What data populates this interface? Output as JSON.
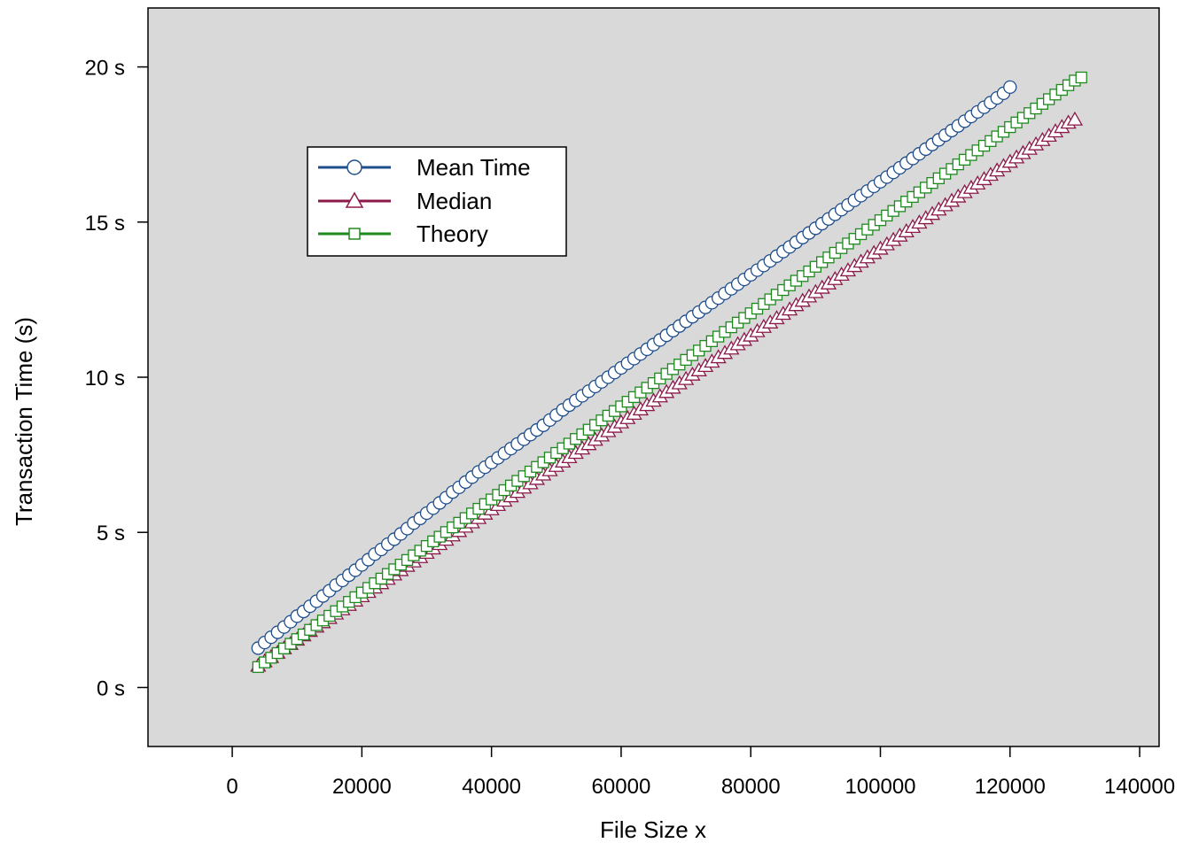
{
  "chart_data": {
    "type": "line",
    "xlabel": "File Size x",
    "ylabel": "Transaction Time (s)",
    "xlim": [
      -13000,
      143000
    ],
    "ylim": [
      -1.9,
      21.9
    ],
    "xticks": [
      0,
      20000,
      40000,
      60000,
      80000,
      100000,
      120000,
      140000
    ],
    "xtick_labels": [
      "0",
      "20000",
      "40000",
      "60000",
      "80000",
      "100000",
      "120000",
      "140000"
    ],
    "yticks": [
      0,
      5,
      10,
      15,
      20
    ],
    "ytick_labels": [
      "0 s",
      "5 s",
      "10 s",
      "15 s",
      "20 s"
    ],
    "grid": false,
    "legend": "upper-left",
    "background": "#d9d9d9",
    "x_start": 4000,
    "x_step": 1000,
    "series": [
      {
        "name": "Mean Time",
        "color": "#1f4e8c",
        "line_style": "dashed",
        "marker": "circle",
        "marker_fill": "#ffffff",
        "values": [
          1.27,
          1.45,
          1.62,
          1.78,
          1.95,
          2.12,
          2.3,
          2.45,
          2.62,
          2.78,
          2.95,
          3.12,
          3.3,
          3.45,
          3.62,
          3.78,
          3.95,
          4.12,
          4.3,
          4.45,
          4.62,
          4.78,
          4.95,
          5.12,
          5.3,
          5.45,
          5.62,
          5.78,
          5.95,
          6.12,
          6.3,
          6.45,
          6.62,
          6.78,
          6.95,
          7.1,
          7.25,
          7.4,
          7.55,
          7.7,
          7.85,
          8.0,
          8.15,
          8.3,
          8.45,
          8.62,
          8.78,
          8.95,
          9.1,
          9.25,
          9.4,
          9.55,
          9.7,
          9.85,
          10.0,
          10.15,
          10.3,
          10.45,
          10.6,
          10.75,
          10.9,
          11.05,
          11.2,
          11.35,
          11.5,
          11.65,
          11.8,
          11.95,
          12.1,
          12.25,
          12.4,
          12.55,
          12.7,
          12.85,
          13.0,
          13.15,
          13.3,
          13.45,
          13.6,
          13.75,
          13.9,
          14.05,
          14.2,
          14.35,
          14.5,
          14.65,
          14.8,
          14.95,
          15.1,
          15.25,
          15.4,
          15.55,
          15.7,
          15.85,
          16.0,
          16.15,
          16.3,
          16.45,
          16.6,
          16.75,
          16.9,
          17.05,
          17.2,
          17.35,
          17.5,
          17.65,
          17.8,
          17.95,
          18.1,
          18.25,
          18.4,
          18.55,
          18.7,
          18.85,
          19.0,
          19.15,
          19.35
        ]
      },
      {
        "name": "Median",
        "color": "#8b1a4a",
        "line_style": "solid",
        "marker": "triangle",
        "marker_fill": "#ffffff",
        "values": [
          0.7,
          0.84,
          0.98,
          1.12,
          1.26,
          1.4,
          1.54,
          1.68,
          1.82,
          1.96,
          2.1,
          2.24,
          2.38,
          2.52,
          2.66,
          2.8,
          2.94,
          3.08,
          3.22,
          3.36,
          3.5,
          3.64,
          3.78,
          3.92,
          4.06,
          4.2,
          4.34,
          4.48,
          4.62,
          4.76,
          4.9,
          5.04,
          5.18,
          5.32,
          5.46,
          5.6,
          5.74,
          5.88,
          6.02,
          6.16,
          6.3,
          6.44,
          6.58,
          6.72,
          6.86,
          7.0,
          7.14,
          7.28,
          7.42,
          7.56,
          7.7,
          7.84,
          7.98,
          8.12,
          8.26,
          8.4,
          8.54,
          8.68,
          8.82,
          8.96,
          9.1,
          9.24,
          9.38,
          9.52,
          9.66,
          9.8,
          9.94,
          10.08,
          10.22,
          10.36,
          10.5,
          10.64,
          10.78,
          10.92,
          11.06,
          11.2,
          11.34,
          11.48,
          11.62,
          11.76,
          11.9,
          12.04,
          12.18,
          12.32,
          12.46,
          12.6,
          12.74,
          12.88,
          13.02,
          13.16,
          13.3,
          13.44,
          13.58,
          13.72,
          13.86,
          14.0,
          14.14,
          14.28,
          14.42,
          14.56,
          14.7,
          14.84,
          14.98,
          15.12,
          15.26,
          15.4,
          15.54,
          15.68,
          15.82,
          15.96,
          16.1,
          16.24,
          16.38,
          16.52,
          16.66,
          16.8,
          16.94,
          17.08,
          17.22,
          17.36,
          17.5,
          17.64,
          17.78,
          17.92,
          18.06,
          18.2,
          18.3
        ]
      },
      {
        "name": "Theory",
        "color": "#1e8a1e",
        "line_style": "solid",
        "marker": "square",
        "marker_fill": "#ffffff",
        "values": [
          0.66,
          0.81,
          0.96,
          1.11,
          1.26,
          1.41,
          1.56,
          1.71,
          1.86,
          2.01,
          2.16,
          2.31,
          2.46,
          2.61,
          2.76,
          2.91,
          3.06,
          3.21,
          3.36,
          3.51,
          3.66,
          3.81,
          3.96,
          4.11,
          4.26,
          4.41,
          4.56,
          4.71,
          4.86,
          5.01,
          5.16,
          5.31,
          5.46,
          5.61,
          5.76,
          5.91,
          6.06,
          6.21,
          6.36,
          6.51,
          6.66,
          6.81,
          6.96,
          7.11,
          7.26,
          7.41,
          7.56,
          7.71,
          7.86,
          8.01,
          8.16,
          8.31,
          8.46,
          8.61,
          8.76,
          8.91,
          9.06,
          9.21,
          9.36,
          9.51,
          9.66,
          9.81,
          9.96,
          10.11,
          10.26,
          10.41,
          10.56,
          10.71,
          10.86,
          11.01,
          11.16,
          11.31,
          11.46,
          11.61,
          11.76,
          11.91,
          12.06,
          12.21,
          12.36,
          12.51,
          12.66,
          12.81,
          12.96,
          13.11,
          13.26,
          13.41,
          13.56,
          13.71,
          13.86,
          14.01,
          14.16,
          14.31,
          14.46,
          14.61,
          14.76,
          14.91,
          15.06,
          15.21,
          15.36,
          15.51,
          15.66,
          15.81,
          15.96,
          16.11,
          16.26,
          16.41,
          16.56,
          16.71,
          16.86,
          17.01,
          17.16,
          17.31,
          17.46,
          17.61,
          17.76,
          17.91,
          18.06,
          18.21,
          18.36,
          18.51,
          18.66,
          18.81,
          18.96,
          19.11,
          19.26,
          19.41,
          19.56,
          19.66
        ]
      }
    ]
  }
}
